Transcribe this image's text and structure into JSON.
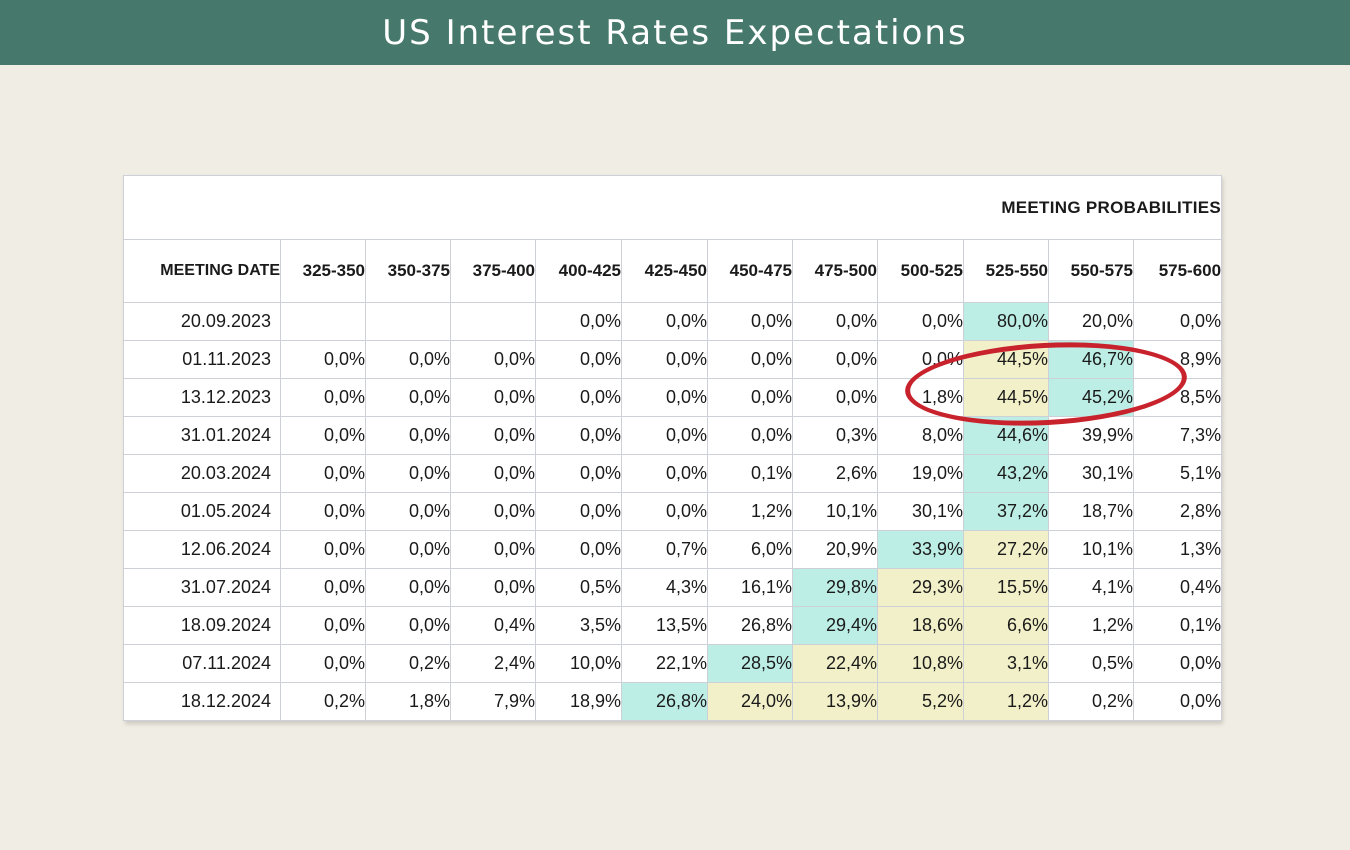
{
  "banner": {
    "title": "US Interest Rates Expectations"
  },
  "chart_data": {
    "type": "table",
    "title": "MEETING PROBABILITIES",
    "columns": [
      "MEETING DATE",
      "325-350",
      "350-375",
      "375-400",
      "400-425",
      "425-450",
      "450-475",
      "475-500",
      "500-525",
      "525-550",
      "550-575",
      "575-600"
    ],
    "rows": [
      {
        "date": "20.09.2023",
        "values": [
          "",
          "",
          "",
          "0,0%",
          "0,0%",
          "0,0%",
          "0,0%",
          "0,0%",
          "80,0%",
          "20,0%",
          "0,0%"
        ],
        "max_col": 8,
        "mid_cols": []
      },
      {
        "date": "01.11.2023",
        "values": [
          "0,0%",
          "0,0%",
          "0,0%",
          "0,0%",
          "0,0%",
          "0,0%",
          "0,0%",
          "0,0%",
          "44,5%",
          "46,7%",
          "8,9%"
        ],
        "max_col": 9,
        "mid_cols": [
          8
        ]
      },
      {
        "date": "13.12.2023",
        "values": [
          "0,0%",
          "0,0%",
          "0,0%",
          "0,0%",
          "0,0%",
          "0,0%",
          "0,0%",
          "1,8%",
          "44,5%",
          "45,2%",
          "8,5%"
        ],
        "max_col": 9,
        "mid_cols": [
          8
        ]
      },
      {
        "date": "31.01.2024",
        "values": [
          "0,0%",
          "0,0%",
          "0,0%",
          "0,0%",
          "0,0%",
          "0,0%",
          "0,3%",
          "8,0%",
          "44,6%",
          "39,9%",
          "7,3%"
        ],
        "max_col": 8,
        "mid_cols": []
      },
      {
        "date": "20.03.2024",
        "values": [
          "0,0%",
          "0,0%",
          "0,0%",
          "0,0%",
          "0,0%",
          "0,1%",
          "2,6%",
          "19,0%",
          "43,2%",
          "30,1%",
          "5,1%"
        ],
        "max_col": 8,
        "mid_cols": []
      },
      {
        "date": "01.05.2024",
        "values": [
          "0,0%",
          "0,0%",
          "0,0%",
          "0,0%",
          "0,0%",
          "1,2%",
          "10,1%",
          "30,1%",
          "37,2%",
          "18,7%",
          "2,8%"
        ],
        "max_col": 8,
        "mid_cols": []
      },
      {
        "date": "12.06.2024",
        "values": [
          "0,0%",
          "0,0%",
          "0,0%",
          "0,0%",
          "0,7%",
          "6,0%",
          "20,9%",
          "33,9%",
          "27,2%",
          "10,1%",
          "1,3%"
        ],
        "max_col": 7,
        "mid_cols": [
          8
        ]
      },
      {
        "date": "31.07.2024",
        "values": [
          "0,0%",
          "0,0%",
          "0,0%",
          "0,5%",
          "4,3%",
          "16,1%",
          "29,8%",
          "29,3%",
          "15,5%",
          "4,1%",
          "0,4%"
        ],
        "max_col": 6,
        "mid_cols": [
          7,
          8
        ]
      },
      {
        "date": "18.09.2024",
        "values": [
          "0,0%",
          "0,0%",
          "0,4%",
          "3,5%",
          "13,5%",
          "26,8%",
          "29,4%",
          "18,6%",
          "6,6%",
          "1,2%",
          "0,1%"
        ],
        "max_col": 6,
        "mid_cols": [
          7,
          8
        ]
      },
      {
        "date": "07.11.2024",
        "values": [
          "0,0%",
          "0,2%",
          "2,4%",
          "10,0%",
          "22,1%",
          "28,5%",
          "22,4%",
          "10,8%",
          "3,1%",
          "0,5%",
          "0,0%"
        ],
        "max_col": 5,
        "mid_cols": [
          6,
          7,
          8
        ]
      },
      {
        "date": "18.12.2024",
        "values": [
          "0,2%",
          "1,8%",
          "7,9%",
          "18,9%",
          "26,8%",
          "24,0%",
          "13,9%",
          "5,2%",
          "1,2%",
          "0,2%",
          "0,0%"
        ],
        "max_col": 4,
        "mid_cols": [
          5,
          6,
          7,
          8
        ]
      }
    ],
    "colors": {
      "max": "#bdeee5",
      "mid": "#f2f0c8",
      "annotation": "#c8232c"
    }
  }
}
